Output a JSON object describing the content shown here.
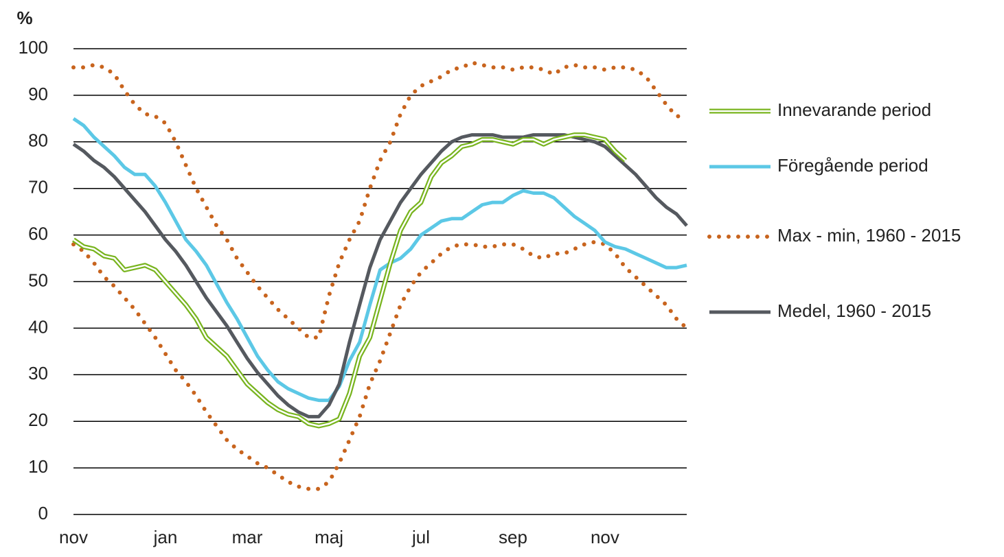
{
  "chart_data": {
    "type": "line",
    "y_unit": "%",
    "categories": [
      "nov",
      null,
      null,
      null,
      null,
      null,
      null,
      null,
      null,
      "jan",
      null,
      null,
      null,
      null,
      null,
      null,
      null,
      "mar",
      null,
      null,
      null,
      null,
      null,
      null,
      null,
      "maj",
      null,
      null,
      null,
      null,
      null,
      null,
      null,
      null,
      "jul",
      null,
      null,
      null,
      null,
      null,
      null,
      null,
      null,
      "sep",
      null,
      null,
      null,
      null,
      null,
      null,
      null,
      null,
      "nov",
      null,
      null,
      null,
      null,
      null,
      null,
      null,
      null
    ],
    "ylim": [
      0,
      100
    ],
    "yticks": [
      0,
      10,
      20,
      30,
      40,
      50,
      60,
      70,
      80,
      90,
      100
    ],
    "grid": true,
    "legend": "right",
    "series": [
      {
        "name": "Innevarande period",
        "color": "#78b41e",
        "style": "double",
        "values": [
          59,
          57.5,
          57,
          55.5,
          55,
          52.5,
          53,
          53.5,
          52.5,
          50,
          47.5,
          45,
          42,
          38,
          36,
          34,
          31,
          28,
          26,
          24,
          22.5,
          21.5,
          21,
          19.5,
          19,
          19.5,
          20.5,
          26,
          34,
          38,
          46,
          54,
          61,
          65,
          67,
          72.5,
          75.5,
          77,
          79,
          79.5,
          80.5,
          80.5,
          80,
          79.5,
          80.5,
          80.5,
          79.5,
          80.5,
          81,
          81.5,
          81.5,
          81,
          80.5,
          78,
          76,
          null,
          null,
          null,
          null,
          null,
          null
        ]
      },
      {
        "name": "Föregående period",
        "color": "#5cc8e6",
        "style": "solid",
        "values": [
          85,
          83.5,
          81,
          79,
          77,
          74.5,
          73,
          73,
          70.5,
          67,
          63,
          59,
          56.5,
          53.5,
          49.5,
          45.5,
          42,
          38,
          34,
          31,
          28.5,
          27,
          26,
          25,
          24.5,
          24.5,
          27.5,
          33,
          37,
          45,
          52.5,
          54,
          55,
          57,
          60,
          61.5,
          63,
          63.5,
          63.5,
          65,
          66.5,
          67,
          67,
          68.5,
          69.5,
          69,
          69,
          68,
          66,
          64,
          62.5,
          61,
          58.5,
          57.5,
          57,
          56,
          55,
          54,
          53,
          53,
          53.5
        ]
      },
      {
        "name": "Max - min, 1960 - 2015",
        "color": "#c8641e",
        "style": "dotted",
        "upper": [
          96,
          96,
          96.5,
          96,
          94.5,
          91,
          88,
          86,
          85.5,
          84,
          80,
          75,
          70,
          66,
          62,
          59,
          55,
          52,
          49,
          46.5,
          44,
          42,
          40,
          38,
          38,
          47,
          54,
          59,
          63,
          70,
          76,
          80,
          86,
          90,
          92,
          93,
          94,
          95.5,
          96,
          97,
          96.5,
          96,
          96,
          95.5,
          96,
          96,
          95.5,
          94.5,
          96,
          96.5,
          96,
          96,
          95.5,
          96,
          96,
          95.5,
          94,
          91,
          88,
          85.5,
          85.5
        ],
        "lower": [
          58,
          56.5,
          54,
          51,
          49,
          46.5,
          44,
          41,
          38,
          34.5,
          31,
          28.5,
          25.5,
          22,
          19,
          16,
          14,
          12.5,
          11,
          10,
          8.5,
          7,
          6,
          5.5,
          5.5,
          7,
          11,
          16,
          21,
          28,
          33,
          39,
          45,
          49,
          52,
          54,
          56,
          57.5,
          58,
          58,
          57.5,
          57.5,
          58,
          58,
          57,
          55.5,
          55,
          56,
          56,
          57,
          58,
          58.5,
          58,
          56,
          53,
          51,
          49,
          47,
          45,
          42,
          40
        ]
      },
      {
        "name": "Medel, 1960 - 2015",
        "color": "#55595f",
        "style": "solid",
        "values": [
          79.5,
          78,
          76,
          74.5,
          72.5,
          70,
          67.5,
          65,
          62,
          59,
          56.5,
          53.5,
          50,
          46.5,
          43.5,
          40.5,
          37,
          33.5,
          30.5,
          28,
          25.5,
          23.5,
          22,
          21,
          21,
          23.5,
          28,
          37,
          45,
          53,
          59,
          63,
          67,
          70,
          73,
          75.5,
          78,
          80,
          81,
          81.5,
          81.5,
          81.5,
          81,
          81,
          81,
          81.5,
          81.5,
          81.5,
          81.5,
          81,
          80.5,
          80,
          79,
          77,
          75,
          73,
          70.5,
          68,
          66,
          64.5,
          62
        ]
      }
    ]
  }
}
